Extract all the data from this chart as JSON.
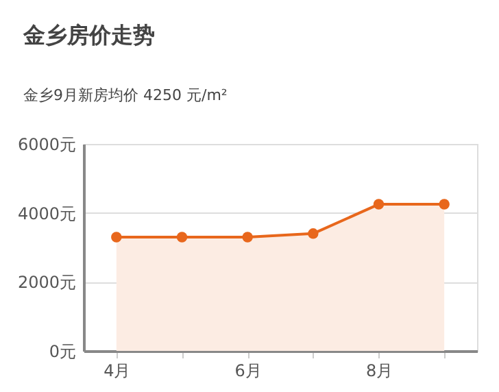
{
  "chart_data": {
    "type": "area",
    "title": "金乡房价走势",
    "subtitle": "金乡9月新房均价 4250 元/m²",
    "categories": [
      "4月",
      null,
      "6月",
      null,
      "8月",
      null
    ],
    "series": [
      {
        "color": "#e8671c",
        "values": [
          3300,
          3300,
          3300,
          3400,
          4250,
          4250
        ]
      }
    ],
    "ylim": [
      0,
      6000
    ],
    "yticks": [
      {
        "value": 0,
        "label": "0元"
      },
      {
        "value": 2000,
        "label": "2000元"
      },
      {
        "value": 4000,
        "label": "4000元"
      },
      {
        "value": 6000,
        "label": "6000元"
      }
    ],
    "grid": "y",
    "marker": "circle"
  }
}
